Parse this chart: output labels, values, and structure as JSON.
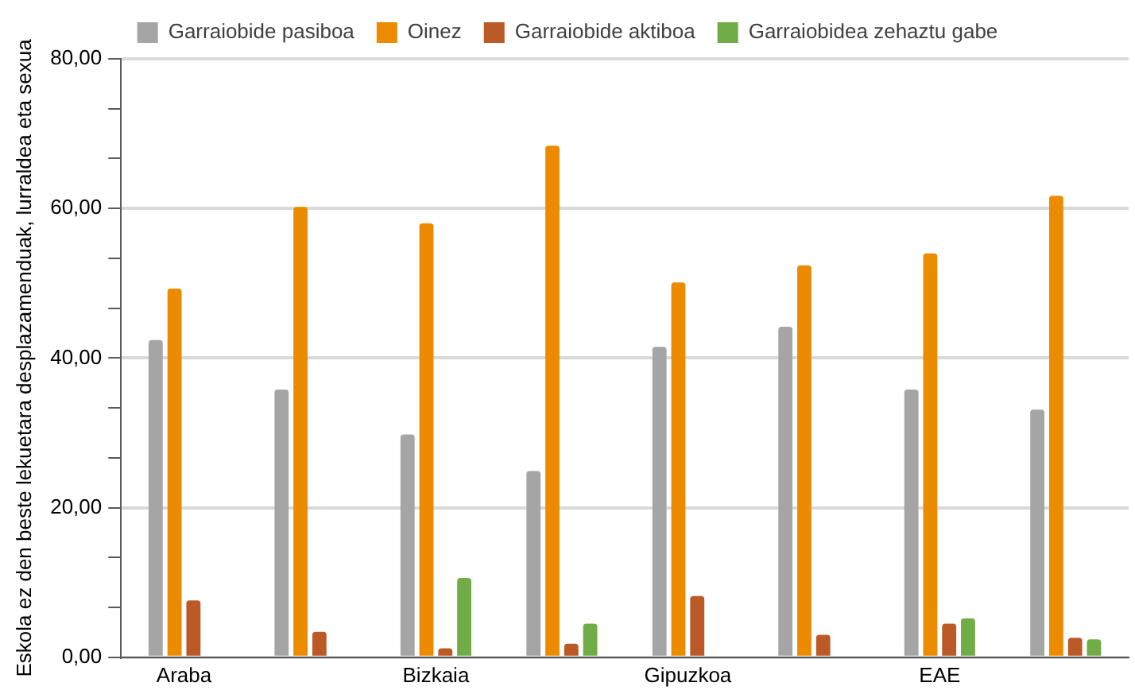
{
  "chart_data": {
    "type": "bar",
    "ylabel": "Eskola ez den beste lekuetara desplazamenduak, lurraldea eta sexua",
    "categories": [
      "Araba",
      null,
      "Bizkaia",
      null,
      "Gipuzkoa",
      null,
      "EAE",
      null
    ],
    "series": [
      {
        "name": "Garraiobide pasiboa",
        "color": "#a5a5a5",
        "values": [
          42.4,
          35.8,
          29.8,
          24.9,
          41.5,
          44.2,
          35.8,
          33.1
        ]
      },
      {
        "name": "Oinez",
        "color": "#ed8b00",
        "values": [
          49.3,
          60.2,
          58.0,
          68.4,
          50.1,
          52.4,
          54.0,
          61.7
        ]
      },
      {
        "name": "Garraiobide aktiboa",
        "color": "#bb5a26",
        "values": [
          7.6,
          3.4,
          1.2,
          1.8,
          8.2,
          3.0,
          4.5,
          2.6
        ]
      },
      {
        "name": "Garraiobidea zehaztu gabe",
        "color": "#70ad47",
        "values": [
          null,
          null,
          10.6,
          4.5,
          null,
          null,
          5.2,
          2.4
        ]
      }
    ],
    "ylim": [
      0,
      80
    ],
    "yticks": [
      {
        "value": 0,
        "label": "0,00"
      },
      {
        "value": 6.667,
        "label": null
      },
      {
        "value": 13.333,
        "label": null
      },
      {
        "value": 20,
        "label": "20,00"
      },
      {
        "value": 26.667,
        "label": null
      },
      {
        "value": 33.333,
        "label": null
      },
      {
        "value": 40,
        "label": "40,00"
      },
      {
        "value": 46.667,
        "label": null
      },
      {
        "value": 53.333,
        "label": null
      },
      {
        "value": 60,
        "label": "60,00"
      },
      {
        "value": 66.667,
        "label": null
      },
      {
        "value": 73.333,
        "label": null
      },
      {
        "value": 80,
        "label": "80,00"
      }
    ],
    "grid": "y",
    "legend": "top"
  }
}
